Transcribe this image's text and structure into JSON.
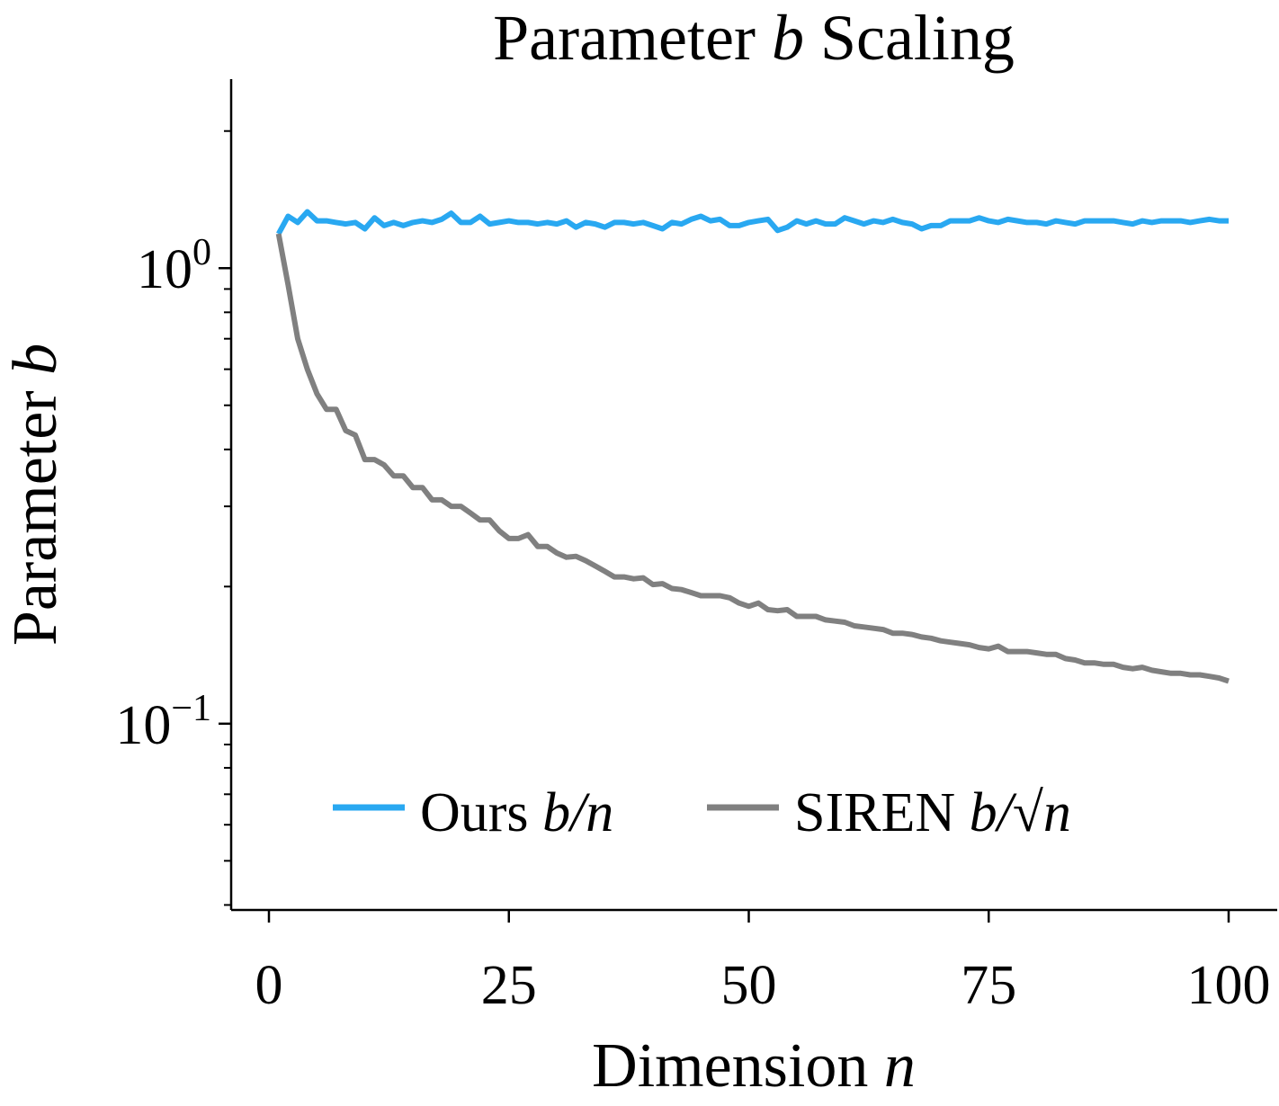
{
  "chart_data": {
    "type": "line",
    "title": {
      "text": "Parameter ",
      "var": "b",
      "rest": " Scaling"
    },
    "xlabel": {
      "text": "Dimension ",
      "var": "n"
    },
    "ylabel": {
      "text": "Parameter ",
      "var": "b"
    },
    "x_range": [
      0,
      100
    ],
    "y_range": [
      0.039,
      2.6
    ],
    "y_scale": "log",
    "x_ticks": [
      0,
      25,
      50,
      75,
      100
    ],
    "y_major_ticks": [
      {
        "value": 1.0,
        "base": "10",
        "exp": "0"
      },
      {
        "value": 0.1,
        "base": "10",
        "exp": "−1"
      }
    ],
    "grid": false,
    "legend_position": "lower-center",
    "series": [
      {
        "name": "Ours b/n",
        "legend": {
          "text": "Ours ",
          "math": "b/n"
        },
        "color": "#29a8f1",
        "x": [
          1,
          2,
          3,
          4,
          5,
          6,
          7,
          8,
          9,
          10,
          11,
          12,
          13,
          14,
          15,
          16,
          17,
          18,
          19,
          20,
          21,
          22,
          23,
          24,
          25,
          26,
          27,
          28,
          29,
          30,
          31,
          32,
          33,
          34,
          35,
          36,
          37,
          38,
          39,
          40,
          41,
          42,
          43,
          44,
          45,
          46,
          47,
          48,
          49,
          50,
          51,
          52,
          53,
          54,
          55,
          56,
          57,
          58,
          59,
          60,
          61,
          62,
          63,
          64,
          65,
          66,
          67,
          68,
          69,
          70,
          71,
          72,
          73,
          74,
          75,
          76,
          77,
          78,
          79,
          80,
          81,
          82,
          83,
          84,
          85,
          86,
          87,
          88,
          89,
          90,
          91,
          92,
          93,
          94,
          95,
          96,
          97,
          98,
          99,
          100
        ],
        "y": [
          1.19,
          1.3,
          1.26,
          1.33,
          1.27,
          1.27,
          1.26,
          1.25,
          1.26,
          1.22,
          1.29,
          1.24,
          1.26,
          1.24,
          1.26,
          1.27,
          1.26,
          1.28,
          1.32,
          1.26,
          1.26,
          1.3,
          1.25,
          1.26,
          1.27,
          1.26,
          1.26,
          1.25,
          1.26,
          1.25,
          1.27,
          1.23,
          1.26,
          1.25,
          1.23,
          1.26,
          1.26,
          1.25,
          1.26,
          1.24,
          1.22,
          1.26,
          1.25,
          1.28,
          1.3,
          1.27,
          1.28,
          1.24,
          1.24,
          1.26,
          1.27,
          1.28,
          1.21,
          1.23,
          1.27,
          1.25,
          1.27,
          1.25,
          1.25,
          1.29,
          1.27,
          1.25,
          1.27,
          1.26,
          1.28,
          1.26,
          1.25,
          1.22,
          1.24,
          1.24,
          1.27,
          1.27,
          1.27,
          1.29,
          1.27,
          1.26,
          1.28,
          1.27,
          1.26,
          1.26,
          1.25,
          1.27,
          1.26,
          1.25,
          1.27,
          1.27,
          1.27,
          1.27,
          1.26,
          1.25,
          1.27,
          1.26,
          1.27,
          1.27,
          1.27,
          1.26,
          1.27,
          1.28,
          1.27,
          1.27
        ]
      },
      {
        "name": "SIREN b/√n",
        "legend": {
          "text": "SIREN ",
          "math": "b/√n"
        },
        "color": "#808080",
        "x": [
          1,
          2,
          3,
          4,
          5,
          6,
          7,
          8,
          9,
          10,
          11,
          12,
          13,
          14,
          15,
          16,
          17,
          18,
          19,
          20,
          21,
          22,
          23,
          24,
          25,
          26,
          27,
          28,
          29,
          30,
          31,
          32,
          33,
          34,
          35,
          36,
          37,
          38,
          39,
          40,
          41,
          42,
          43,
          44,
          45,
          46,
          47,
          48,
          49,
          50,
          51,
          52,
          53,
          54,
          55,
          56,
          57,
          58,
          59,
          60,
          61,
          62,
          63,
          64,
          65,
          66,
          67,
          68,
          69,
          70,
          71,
          72,
          73,
          74,
          75,
          76,
          77,
          78,
          79,
          80,
          81,
          82,
          83,
          84,
          85,
          86,
          87,
          88,
          89,
          90,
          91,
          92,
          93,
          94,
          95,
          96,
          97,
          98,
          99,
          100
        ],
        "y": [
          1.19,
          0.92,
          0.7,
          0.6,
          0.53,
          0.49,
          0.49,
          0.44,
          0.43,
          0.38,
          0.38,
          0.37,
          0.35,
          0.35,
          0.33,
          0.33,
          0.31,
          0.31,
          0.3,
          0.3,
          0.29,
          0.28,
          0.28,
          0.265,
          0.255,
          0.255,
          0.26,
          0.245,
          0.245,
          0.237,
          0.232,
          0.233,
          0.228,
          0.222,
          0.216,
          0.21,
          0.21,
          0.208,
          0.209,
          0.202,
          0.203,
          0.198,
          0.197,
          0.194,
          0.191,
          0.191,
          0.191,
          0.189,
          0.184,
          0.181,
          0.184,
          0.178,
          0.177,
          0.178,
          0.172,
          0.172,
          0.172,
          0.169,
          0.168,
          0.167,
          0.164,
          0.163,
          0.162,
          0.161,
          0.158,
          0.158,
          0.157,
          0.155,
          0.154,
          0.152,
          0.151,
          0.15,
          0.149,
          0.147,
          0.146,
          0.148,
          0.144,
          0.144,
          0.144,
          0.143,
          0.142,
          0.142,
          0.139,
          0.138,
          0.136,
          0.136,
          0.135,
          0.135,
          0.133,
          0.132,
          0.133,
          0.131,
          0.13,
          0.129,
          0.129,
          0.128,
          0.128,
          0.127,
          0.126,
          0.124
        ]
      }
    ]
  }
}
